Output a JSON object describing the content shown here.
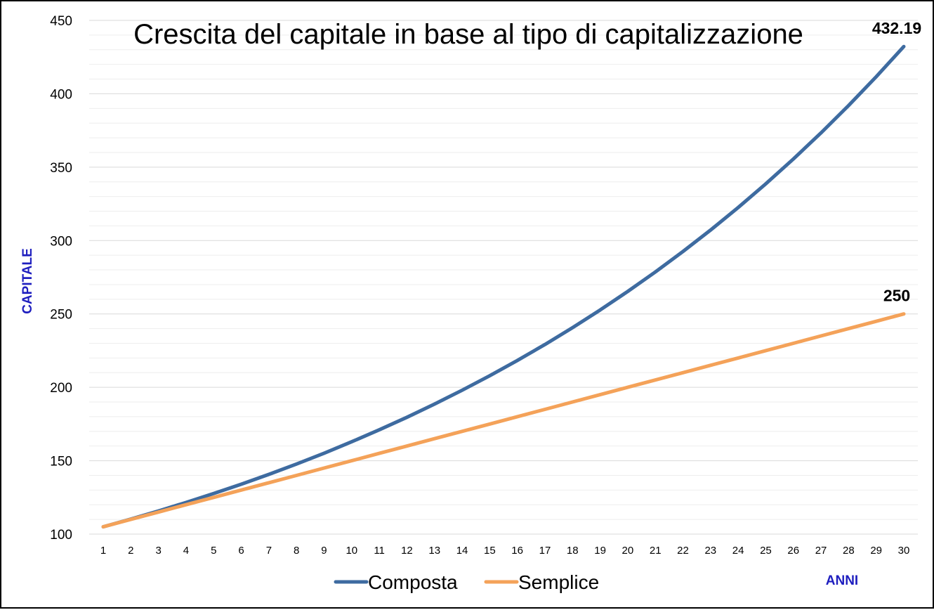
{
  "chart_data": {
    "type": "line",
    "title": "Crescita del capitale in base al tipo di capitalizzazione",
    "xlabel": "ANNI",
    "ylabel": "CAPITALE",
    "ylim": [
      100,
      450
    ],
    "yticks": [
      100,
      150,
      200,
      250,
      300,
      350,
      400,
      450
    ],
    "grid": true,
    "legend_position": "bottom",
    "x": [
      1,
      2,
      3,
      4,
      5,
      6,
      7,
      8,
      9,
      10,
      11,
      12,
      13,
      14,
      15,
      16,
      17,
      18,
      19,
      20,
      21,
      22,
      23,
      24,
      25,
      26,
      27,
      28,
      29,
      30
    ],
    "series": [
      {
        "name": "Composta",
        "color": "#3e6ba0",
        "values": [
          105,
          110.25,
          115.76,
          121.55,
          127.63,
          134.01,
          140.71,
          147.75,
          155.13,
          162.89,
          171.03,
          179.59,
          188.56,
          197.99,
          207.89,
          218.29,
          229.2,
          240.66,
          252.7,
          265.33,
          278.6,
          292.53,
          307.15,
          322.51,
          338.64,
          355.57,
          373.35,
          392.01,
          411.61,
          432.19
        ],
        "end_label": "432.19"
      },
      {
        "name": "Semplice",
        "color": "#f4a259",
        "values": [
          105,
          110,
          115,
          120,
          125,
          130,
          135,
          140,
          145,
          150,
          155,
          160,
          165,
          170,
          175,
          180,
          185,
          190,
          195,
          200,
          205,
          210,
          215,
          220,
          225,
          230,
          235,
          240,
          245,
          250
        ],
        "end_label": "250"
      }
    ]
  }
}
